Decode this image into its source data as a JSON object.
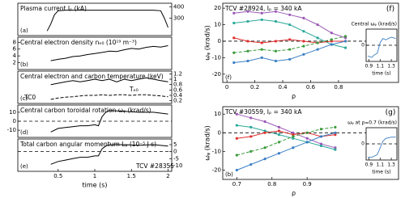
{
  "chart_data": [
    {
      "type": "line",
      "title": "Plasma current Iₚ (kA)",
      "panel_label": "(a)",
      "yaxis_side": "right",
      "x": [
        0.35,
        0.4,
        0.45,
        0.5,
        0.6,
        0.8,
        1.0,
        1.2,
        1.4,
        1.6,
        1.8,
        1.9,
        1.95,
        2.0
      ],
      "series": [
        {
          "color": "#000000",
          "values": [
            190,
            250,
            330,
            365,
            370,
            370,
            370,
            370,
            370,
            370,
            370,
            365,
            300,
            220
          ]
        }
      ],
      "xlim": [
        -0.05,
        2.05
      ],
      "ylim": [
        150,
        430
      ],
      "yticks": [
        300,
        400
      ]
    },
    {
      "type": "line",
      "title": "Central electron density nₑ₀ (10¹⁹ m⁻³)",
      "panel_label": "(b)",
      "yaxis_side": "left",
      "x": [
        0.4,
        0.5,
        0.6,
        0.7,
        0.8,
        0.9,
        1.0,
        1.1,
        1.2,
        1.3,
        1.4,
        1.5,
        1.6,
        1.7,
        1.8,
        1.9,
        2.0
      ],
      "series": [
        {
          "color": "#000000",
          "values": [
            2.6,
            3.0,
            3.3,
            3.8,
            4.0,
            4.4,
            4.7,
            5.0,
            5.4,
            5.3,
            5.8,
            6.2,
            6.0,
            6.5,
            6.8,
            6.6,
            7.0
          ]
        }
      ],
      "xlim": [
        -0.05,
        2.05
      ],
      "ylim": [
        0,
        9.5
      ],
      "yticks": [
        2,
        4,
        6,
        8
      ]
    },
    {
      "type": "line",
      "title": "Central electron and carbon temperature (keV)",
      "panel_label": "(c)",
      "yaxis_side": "right",
      "annotations": [
        "Tₑ₀",
        "TC0"
      ],
      "x": [
        0.4,
        0.5,
        0.6,
        0.7,
        0.8,
        0.9,
        1.0,
        1.1,
        1.2,
        1.3,
        1.4,
        1.5,
        1.6,
        1.7,
        1.8,
        1.9,
        2.0
      ],
      "series": [
        {
          "color": "#000000",
          "values": [
            0.8,
            0.85,
            0.9,
            0.95,
            0.9,
            0.95,
            1.0,
            0.95,
            1.0,
            0.9,
            1.0,
            0.95,
            1.0,
            1.05,
            1.0,
            0.95,
            0.9
          ]
        },
        {
          "color": "#000000",
          "dash": true,
          "values": [
            0.25,
            0.3,
            0.33,
            0.35,
            0.38,
            0.4,
            0.4,
            0.42,
            0.4,
            0.42,
            0.42,
            0.4,
            0.42,
            0.42,
            0.4,
            0.38,
            0.35
          ]
        }
      ],
      "xlim": [
        -0.05,
        2.05
      ],
      "ylim": [
        0.1,
        1.3
      ],
      "yticks": [
        0.2,
        0.4,
        0.6,
        0.8,
        1,
        1.2
      ]
    },
    {
      "type": "line",
      "title": "Central carbon toroidal rotation ωᵩ (krad/s)",
      "panel_label": "(d)",
      "yaxis_side": "left",
      "zero_line": true,
      "x": [
        0.4,
        0.5,
        0.6,
        0.7,
        0.8,
        0.9,
        1.0,
        1.05,
        1.1,
        1.15,
        1.2,
        1.4,
        1.6,
        1.8,
        2.0
      ],
      "series": [
        {
          "color": "#000000",
          "values": [
            -12,
            -8,
            -7,
            -6,
            -5,
            -5,
            -4,
            -5,
            5,
            10,
            12,
            11,
            10,
            10,
            8
          ]
        }
      ],
      "xlim": [
        -0.05,
        2.05
      ],
      "ylim": [
        -18,
        18
      ],
      "yticks": [
        -10,
        0,
        10
      ]
    },
    {
      "type": "line",
      "title": "Total carbon angular momentum Lᵩ (10⁻⁵ J s)",
      "panel_label": "(e)",
      "yaxis_side": "right",
      "zero_line": true,
      "annotations": [
        "TCV #28355"
      ],
      "xlabel": "time (s)",
      "x": [
        0.4,
        0.5,
        0.6,
        0.7,
        0.8,
        0.9,
        1.0,
        1.05,
        1.1,
        1.15,
        1.2,
        1.4,
        1.6,
        1.8,
        2.0
      ],
      "series": [
        {
          "color": "#000000",
          "values": [
            -9,
            -7,
            -6,
            -5,
            -4,
            -4,
            -3,
            -3,
            2,
            4,
            5,
            5,
            4.5,
            5,
            4
          ]
        }
      ],
      "xlim": [
        -0.05,
        2.05
      ],
      "ylim": [
        -14,
        9
      ],
      "yticks": [
        -10,
        -5,
        0,
        5
      ],
      "xticks": [
        0.5,
        1,
        1.5,
        2
      ]
    },
    {
      "type": "line",
      "title": "TCV #28924, Iₚ = 340 kA",
      "panel_label": "(f)",
      "side_label": "(f)",
      "yaxis_side": "left",
      "zero_line": true,
      "markers": true,
      "xlabel": "ρ",
      "ylabel": "ωᵩ (krad/s)",
      "x": [
        0.05,
        0.15,
        0.25,
        0.35,
        0.45,
        0.55,
        0.65,
        0.75,
        0.85
      ],
      "series": [
        {
          "color": "#9b59b6",
          "values": [
            17,
            18,
            17,
            18,
            16,
            14,
            10,
            5,
            2
          ]
        },
        {
          "color": "#2aa89a",
          "values": [
            11,
            12,
            13,
            12,
            10,
            6,
            2,
            -2,
            -4
          ]
        },
        {
          "color": "#e03030",
          "values": [
            2,
            0,
            -1,
            0,
            1,
            0,
            -1,
            0,
            0
          ]
        },
        {
          "color": "#3a9a3a",
          "dash": true,
          "values": [
            -7,
            -6,
            -5,
            -6,
            -5,
            -3,
            -1,
            1,
            3
          ]
        },
        {
          "color": "#3b7fc4",
          "values": [
            -13,
            -12,
            -10,
            -12,
            -11,
            -8,
            -5,
            -2,
            0
          ]
        }
      ],
      "xlim": [
        -0.03,
        1.23
      ],
      "ylim": [
        -25,
        23
      ],
      "yticks": [
        -20,
        -10,
        0,
        10,
        20
      ],
      "xticks": [
        0,
        0.2,
        0.4,
        0.6,
        0.8
      ],
      "inset": {
        "type": "line",
        "title": "Central ωᵩ (krad/s)",
        "xlabel": "time (s)",
        "zero_line": true,
        "yaxis_side": "left",
        "x": [
          0.88,
          0.95,
          1.0,
          1.05,
          1.1,
          1.15,
          1.2,
          1.3,
          1.38
        ],
        "series": [
          {
            "color": "#3b7fc4",
            "values": [
              -8,
              -9,
              -7,
              -6,
              2,
              5,
              4,
              6,
              5
            ]
          }
        ],
        "xlim": [
          0.85,
          1.4
        ],
        "ylim": [
          -12,
          12
        ],
        "xticks": [
          0.9,
          1.1,
          1.3
        ],
        "yticks": [
          0
        ]
      }
    },
    {
      "type": "line",
      "title": "TCV #30559, Iₚ = 340 kA",
      "panel_label": "(b)",
      "side_label": "(g)",
      "yaxis_side": "left",
      "zero_line": true,
      "markers": true,
      "xlabel": "ρ",
      "ylabel": "ωᵩ (krad/s)",
      "x": [
        0.7,
        0.74,
        0.78,
        0.82,
        0.86,
        0.9,
        0.94,
        0.98
      ],
      "series": [
        {
          "color": "#9b59b6",
          "values": [
            10,
            8,
            6,
            3,
            0,
            -3,
            -6,
            -8
          ]
        },
        {
          "color": "#2aa89a",
          "values": [
            4,
            3,
            1,
            -1,
            -3,
            -5,
            -7,
            -9
          ]
        },
        {
          "color": "#e03030",
          "values": [
            -3,
            -2,
            0,
            1,
            -1,
            0,
            -2,
            -1
          ]
        },
        {
          "color": "#3a9a3a",
          "dash": true,
          "values": [
            -12,
            -10,
            -8,
            -5,
            -2,
            0,
            2,
            3
          ]
        },
        {
          "color": "#3b7fc4",
          "values": [
            -20,
            -17,
            -14,
            -11,
            -8,
            -5,
            -2,
            0
          ]
        }
      ],
      "xlim": [
        0.66,
        1.16
      ],
      "ylim": [
        -25,
        14
      ],
      "yticks": [
        -20,
        -10,
        0,
        10
      ],
      "xticks": [
        0.7,
        0.8,
        0.9
      ],
      "inset": {
        "type": "line",
        "title": "ωᵩ at ρ=0.7 (krad/s)",
        "xlabel": "time (s)",
        "zero_line": true,
        "yaxis_side": "left",
        "x": [
          0.88,
          0.95,
          1.0,
          1.05,
          1.1,
          1.15,
          1.2,
          1.3,
          1.38
        ],
        "series": [
          {
            "color": "#3b7fc4",
            "values": [
              -10,
              -10,
              -9,
              -8,
              -3,
              2,
              4,
              5,
              5
            ]
          }
        ],
        "xlim": [
          0.85,
          1.4
        ],
        "ylim": [
          -12,
          12
        ],
        "xticks": [
          0.9,
          1.1,
          1.3
        ],
        "yticks": [
          0
        ]
      }
    }
  ]
}
